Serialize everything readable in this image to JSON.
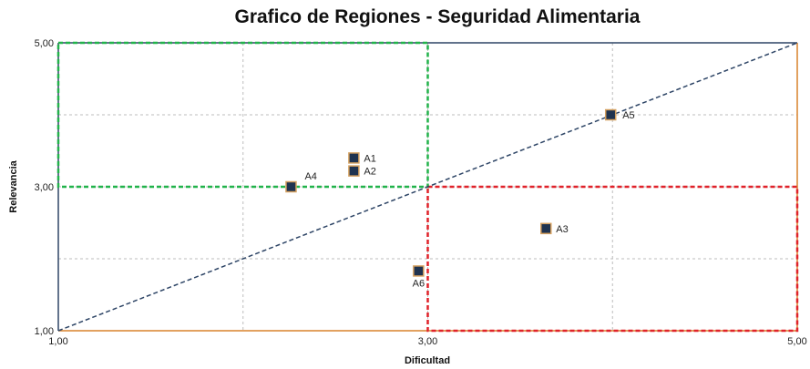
{
  "chart_data": {
    "type": "scatter",
    "title": "Grafico de Regiones - Seguridad Alimentaria",
    "xlabel": "Dificultad",
    "ylabel": "Relevancia",
    "xlim": [
      1,
      5
    ],
    "ylim": [
      1,
      5
    ],
    "x_ticks": [
      {
        "value": 1,
        "label": "1,00"
      },
      {
        "value": 3,
        "label": "3,00"
      },
      {
        "value": 5,
        "label": "5,00"
      }
    ],
    "y_ticks": [
      {
        "value": 1,
        "label": "1,00"
      },
      {
        "value": 3,
        "label": "3,00"
      },
      {
        "value": 5,
        "label": "5,00"
      }
    ],
    "grid": true,
    "points": [
      {
        "label": "A1",
        "x": 2.6,
        "y": 3.4
      },
      {
        "label": "A2",
        "x": 2.6,
        "y": 3.22
      },
      {
        "label": "A3",
        "x": 3.64,
        "y": 2.42
      },
      {
        "label": "A4",
        "x": 2.26,
        "y": 3.0
      },
      {
        "label": "A5",
        "x": 3.99,
        "y": 4.0
      },
      {
        "label": "A6",
        "x": 2.95,
        "y": 1.83
      }
    ],
    "regions": [
      {
        "name": "green-region",
        "x": [
          1,
          3
        ],
        "y": [
          3,
          5
        ],
        "color": "#22b34b"
      },
      {
        "name": "red-region",
        "x": [
          3,
          5
        ],
        "y": [
          1,
          3
        ],
        "color": "#e0222a"
      }
    ],
    "diagonal": {
      "from": [
        1,
        1
      ],
      "to": [
        5,
        5
      ],
      "color": "#2e4566"
    },
    "colors": {
      "marker_fill": "#1f3350",
      "marker_stroke": "#d4a060",
      "grid": "#bdbdbd",
      "outer_orange": "#d9822b",
      "outer_navy": "#2e4566"
    }
  }
}
